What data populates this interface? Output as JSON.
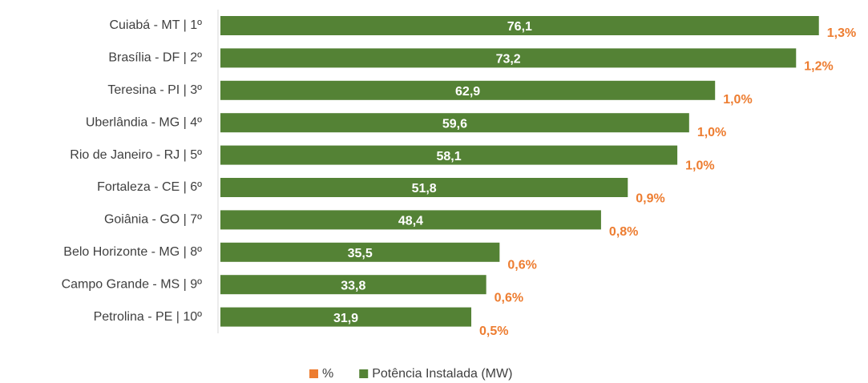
{
  "chart_data": {
    "type": "bar",
    "orientation": "horizontal",
    "categories": [
      "Cuiabá - MT | 1º",
      "Brasília - DF | 2º",
      "Teresina - PI | 3º",
      "Uberlândia - MG | 4º",
      "Rio de Janeiro - RJ | 5º",
      "Fortaleza - CE | 6º",
      "Goiânia - GO | 7º",
      "Belo Horizonte - MG | 8º",
      "Campo Grande - MS | 9º",
      "Petrolina - PE | 10º"
    ],
    "series": [
      {
        "name": "%",
        "color": "#ed7d31",
        "values": [
          1.3,
          1.2,
          1.0,
          1.0,
          1.0,
          0.9,
          0.8,
          0.6,
          0.6,
          0.5
        ],
        "value_labels": [
          "1,3%",
          "1,2%",
          "1,0%",
          "1,0%",
          "1,0%",
          "0,9%",
          "0,8%",
          "0,6%",
          "0,6%",
          "0,5%"
        ]
      },
      {
        "name": "Potência Instalada (MW)",
        "color": "#548235",
        "values": [
          76.1,
          73.2,
          62.9,
          59.6,
          58.1,
          51.8,
          48.4,
          35.5,
          33.8,
          31.9
        ],
        "value_labels": [
          "76,1",
          "73,2",
          "62,9",
          "59,6",
          "58,1",
          "51,8",
          "48,4",
          "35,5",
          "33,8",
          "31,9"
        ]
      }
    ],
    "xlim": [
      0,
      80
    ],
    "legend": "bottom"
  }
}
